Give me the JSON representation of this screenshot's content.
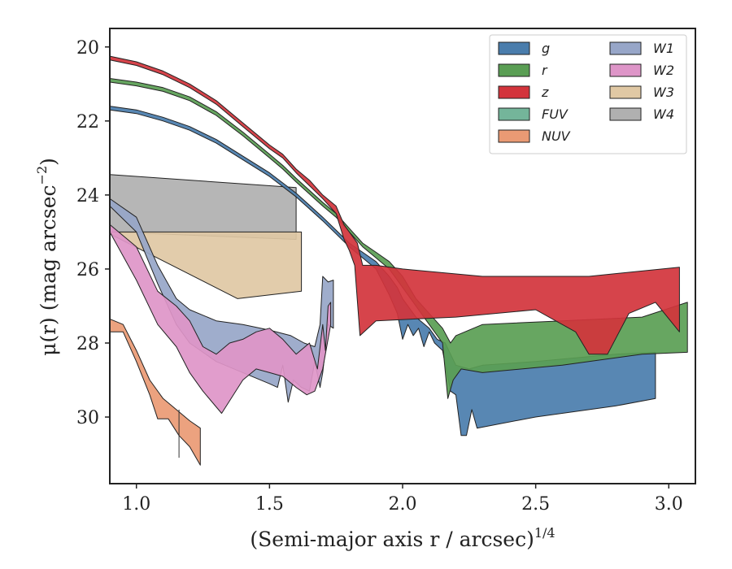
{
  "chart_data": {
    "type": "area",
    "xlabel": "(Semi-major axis r / arcsec)",
    "xlabel_exponent": "1/4",
    "ylabel": "μ(r) (mag arcsec",
    "ylabel_exponent": "−2",
    "ylabel_close": ")",
    "xlim": [
      0.9,
      3.1
    ],
    "ylim": [
      31.8,
      19.5
    ],
    "y_inverted": true,
    "x_ticks": [
      1.0,
      1.5,
      2.0,
      2.5,
      3.0
    ],
    "x_tick_labels": [
      "1.0",
      "1.5",
      "2.0",
      "2.5",
      "3.0"
    ],
    "y_ticks": [
      20,
      22,
      24,
      26,
      28,
      30
    ],
    "y_tick_labels": [
      "20",
      "22",
      "24",
      "26",
      "28",
      "30"
    ],
    "grid": false,
    "legend_position": "top-right",
    "legend_columns": 2,
    "series": [
      {
        "name": "W4",
        "color": "#b0b0b0",
        "upper": [
          [
            0.9,
            23.45
          ],
          [
            1.6,
            23.8
          ]
        ],
        "lower": [
          [
            0.9,
            25.0
          ],
          [
            1.6,
            25.2
          ]
        ]
      },
      {
        "name": "W3",
        "color": "#e0c8a4",
        "upper": [
          [
            0.9,
            25.0
          ],
          [
            1.62,
            25.0
          ]
        ],
        "lower": [
          [
            0.9,
            25.05
          ],
          [
            1.38,
            26.8
          ],
          [
            1.62,
            26.6
          ]
        ]
      },
      {
        "name": "W1",
        "color": "#97a6c8",
        "upper": [
          [
            0.9,
            24.1
          ],
          [
            1.0,
            24.6
          ],
          [
            1.08,
            25.9
          ],
          [
            1.15,
            26.8
          ],
          [
            1.2,
            27.1
          ],
          [
            1.3,
            27.4
          ],
          [
            1.4,
            27.5
          ],
          [
            1.5,
            27.65
          ],
          [
            1.58,
            27.8
          ],
          [
            1.63,
            28.0
          ],
          [
            1.67,
            28.1
          ],
          [
            1.69,
            27.5
          ],
          [
            1.7,
            26.2
          ],
          [
            1.72,
            26.35
          ],
          [
            1.74,
            26.3
          ]
        ],
        "lower": [
          [
            0.9,
            24.3
          ],
          [
            1.0,
            25.0
          ],
          [
            1.08,
            26.4
          ],
          [
            1.15,
            27.5
          ],
          [
            1.2,
            28.0
          ],
          [
            1.3,
            28.5
          ],
          [
            1.4,
            28.8
          ],
          [
            1.5,
            29.1
          ],
          [
            1.53,
            29.2
          ],
          [
            1.55,
            28.6
          ],
          [
            1.57,
            29.6
          ],
          [
            1.59,
            29.0
          ],
          [
            1.62,
            29.2
          ],
          [
            1.65,
            29.3
          ],
          [
            1.67,
            28.5
          ],
          [
            1.69,
            29.2
          ],
          [
            1.7,
            28.8
          ],
          [
            1.72,
            27.5
          ],
          [
            1.74,
            27.6
          ]
        ]
      },
      {
        "name": "W2",
        "color": "#de95c8",
        "upper": [
          [
            0.9,
            24.8
          ],
          [
            1.0,
            25.4
          ],
          [
            1.08,
            26.6
          ],
          [
            1.15,
            27.0
          ],
          [
            1.2,
            27.4
          ],
          [
            1.25,
            28.1
          ],
          [
            1.3,
            28.3
          ],
          [
            1.35,
            28.0
          ],
          [
            1.4,
            27.9
          ],
          [
            1.45,
            27.7
          ],
          [
            1.5,
            27.6
          ],
          [
            1.55,
            27.9
          ],
          [
            1.6,
            28.3
          ],
          [
            1.65,
            28.0
          ],
          [
            1.68,
            28.7
          ],
          [
            1.7,
            27.5
          ],
          [
            1.71,
            28.2
          ],
          [
            1.72,
            27.0
          ],
          [
            1.73,
            26.9
          ]
        ],
        "lower": [
          [
            0.9,
            25.0
          ],
          [
            1.0,
            26.3
          ],
          [
            1.08,
            27.5
          ],
          [
            1.15,
            28.1
          ],
          [
            1.2,
            28.8
          ],
          [
            1.25,
            29.3
          ],
          [
            1.32,
            29.9
          ],
          [
            1.4,
            29.0
          ],
          [
            1.45,
            28.7
          ],
          [
            1.5,
            28.8
          ],
          [
            1.55,
            28.9
          ],
          [
            1.6,
            29.2
          ],
          [
            1.64,
            29.4
          ],
          [
            1.67,
            29.3
          ],
          [
            1.7,
            28.7
          ],
          [
            1.73,
            27.5
          ]
        ]
      },
      {
        "name": "NUV",
        "color": "#ea9a74",
        "upper": [
          [
            0.9,
            27.35
          ],
          [
            0.95,
            27.5
          ],
          [
            1.0,
            28.2
          ],
          [
            1.05,
            29.0
          ],
          [
            1.1,
            29.5
          ],
          [
            1.15,
            29.8
          ],
          [
            1.2,
            30.1
          ],
          [
            1.24,
            30.3
          ]
        ],
        "lower": [
          [
            0.9,
            27.7
          ],
          [
            0.95,
            27.7
          ],
          [
            1.0,
            28.5
          ],
          [
            1.05,
            29.4
          ],
          [
            1.08,
            30.05
          ],
          [
            1.12,
            30.05
          ],
          [
            1.16,
            30.5
          ],
          [
            1.2,
            30.8
          ],
          [
            1.24,
            31.3
          ]
        ]
      },
      {
        "name": "g",
        "color": "#4a7dac",
        "upper": [
          [
            0.9,
            21.6
          ],
          [
            1.0,
            21.7
          ],
          [
            1.1,
            21.9
          ],
          [
            1.2,
            22.15
          ],
          [
            1.3,
            22.5
          ],
          [
            1.4,
            22.95
          ],
          [
            1.5,
            23.4
          ],
          [
            1.6,
            23.95
          ],
          [
            1.7,
            24.6
          ],
          [
            1.75,
            24.95
          ],
          [
            1.8,
            25.3
          ],
          [
            1.85,
            25.55
          ],
          [
            1.9,
            25.8
          ],
          [
            1.95,
            26.2
          ],
          [
            1.98,
            26.5
          ],
          [
            2.0,
            26.8
          ],
          [
            2.05,
            27.3
          ],
          [
            2.1,
            27.6
          ],
          [
            2.13,
            27.9
          ],
          [
            2.16,
            28.0
          ],
          [
            2.18,
            28.3
          ],
          [
            2.2,
            28.6
          ],
          [
            2.25,
            28.7
          ],
          [
            2.3,
            28.6
          ],
          [
            2.5,
            28.5
          ],
          [
            2.8,
            28.3
          ],
          [
            2.95,
            28.25
          ]
        ],
        "lower": [
          [
            0.9,
            21.7
          ],
          [
            1.0,
            21.8
          ],
          [
            1.1,
            22.0
          ],
          [
            1.2,
            22.25
          ],
          [
            1.3,
            22.6
          ],
          [
            1.4,
            23.05
          ],
          [
            1.5,
            23.5
          ],
          [
            1.6,
            24.05
          ],
          [
            1.7,
            24.7
          ],
          [
            1.75,
            25.05
          ],
          [
            1.8,
            25.4
          ],
          [
            1.85,
            25.7
          ],
          [
            1.9,
            26.0
          ],
          [
            1.95,
            26.7
          ],
          [
            1.98,
            27.2
          ],
          [
            2.0,
            27.9
          ],
          [
            2.02,
            27.5
          ],
          [
            2.04,
            27.8
          ],
          [
            2.06,
            27.6
          ],
          [
            2.08,
            28.1
          ],
          [
            2.1,
            27.7
          ],
          [
            2.12,
            28.0
          ],
          [
            2.15,
            28.2
          ],
          [
            2.18,
            29.3
          ],
          [
            2.2,
            29.4
          ],
          [
            2.22,
            30.5
          ],
          [
            2.24,
            30.5
          ],
          [
            2.26,
            29.8
          ],
          [
            2.28,
            30.3
          ],
          [
            2.5,
            30.0
          ],
          [
            2.8,
            29.7
          ],
          [
            2.95,
            29.5
          ]
        ]
      },
      {
        "name": "r",
        "color": "#5a9e54",
        "upper": [
          [
            0.9,
            20.85
          ],
          [
            1.0,
            20.95
          ],
          [
            1.1,
            21.1
          ],
          [
            1.2,
            21.35
          ],
          [
            1.3,
            21.75
          ],
          [
            1.4,
            22.3
          ],
          [
            1.5,
            22.9
          ],
          [
            1.55,
            23.2
          ],
          [
            1.6,
            23.55
          ],
          [
            1.7,
            24.2
          ],
          [
            1.75,
            24.5
          ],
          [
            1.8,
            24.9
          ],
          [
            1.85,
            25.3
          ],
          [
            1.9,
            25.55
          ],
          [
            1.95,
            25.8
          ],
          [
            2.0,
            26.2
          ],
          [
            2.05,
            26.8
          ],
          [
            2.1,
            27.2
          ],
          [
            2.15,
            27.6
          ],
          [
            2.18,
            28.0
          ],
          [
            2.2,
            27.8
          ],
          [
            2.3,
            27.5
          ],
          [
            2.6,
            27.4
          ],
          [
            2.9,
            27.3
          ],
          [
            3.07,
            26.9
          ]
        ],
        "lower": [
          [
            0.9,
            20.95
          ],
          [
            1.0,
            21.05
          ],
          [
            1.1,
            21.2
          ],
          [
            1.2,
            21.45
          ],
          [
            1.3,
            21.85
          ],
          [
            1.4,
            22.4
          ],
          [
            1.5,
            23.0
          ],
          [
            1.55,
            23.3
          ],
          [
            1.6,
            23.65
          ],
          [
            1.7,
            24.3
          ],
          [
            1.75,
            24.6
          ],
          [
            1.8,
            25.0
          ],
          [
            1.85,
            25.4
          ],
          [
            1.9,
            25.7
          ],
          [
            1.95,
            26.0
          ],
          [
            2.0,
            26.5
          ],
          [
            2.05,
            27.0
          ],
          [
            2.1,
            27.5
          ],
          [
            2.15,
            28.0
          ],
          [
            2.17,
            29.5
          ],
          [
            2.19,
            29.0
          ],
          [
            2.22,
            28.7
          ],
          [
            2.3,
            28.8
          ],
          [
            2.6,
            28.6
          ],
          [
            2.9,
            28.3
          ],
          [
            3.07,
            28.25
          ]
        ]
      },
      {
        "name": "z",
        "color": "#d3343c",
        "upper": [
          [
            0.9,
            20.25
          ],
          [
            1.0,
            20.4
          ],
          [
            1.1,
            20.65
          ],
          [
            1.2,
            21.0
          ],
          [
            1.3,
            21.45
          ],
          [
            1.4,
            22.05
          ],
          [
            1.5,
            22.65
          ],
          [
            1.55,
            22.9
          ],
          [
            1.6,
            23.3
          ],
          [
            1.65,
            23.6
          ],
          [
            1.7,
            24.0
          ],
          [
            1.75,
            24.3
          ],
          [
            1.78,
            24.8
          ],
          [
            1.8,
            25.0
          ],
          [
            1.83,
            25.3
          ],
          [
            1.85,
            25.9
          ],
          [
            1.9,
            25.9
          ],
          [
            2.0,
            26.0
          ],
          [
            2.3,
            26.2
          ],
          [
            2.7,
            26.2
          ],
          [
            3.04,
            25.95
          ]
        ],
        "lower": [
          [
            0.9,
            20.35
          ],
          [
            1.0,
            20.5
          ],
          [
            1.1,
            20.75
          ],
          [
            1.2,
            21.1
          ],
          [
            1.3,
            21.55
          ],
          [
            1.4,
            22.15
          ],
          [
            1.5,
            22.75
          ],
          [
            1.55,
            23.0
          ],
          [
            1.6,
            23.4
          ],
          [
            1.65,
            23.75
          ],
          [
            1.7,
            24.1
          ],
          [
            1.75,
            24.5
          ],
          [
            1.78,
            25.2
          ],
          [
            1.8,
            25.5
          ],
          [
            1.82,
            25.9
          ],
          [
            1.84,
            27.8
          ],
          [
            1.9,
            27.4
          ],
          [
            2.2,
            27.3
          ],
          [
            2.5,
            27.1
          ],
          [
            2.65,
            27.7
          ],
          [
            2.7,
            28.3
          ],
          [
            2.77,
            28.3
          ],
          [
            2.85,
            27.2
          ],
          [
            2.95,
            26.9
          ],
          [
            3.04,
            27.7
          ]
        ]
      }
    ],
    "legend": [
      {
        "label": "g",
        "color": "#4a7dac"
      },
      {
        "label": "r",
        "color": "#5a9e54"
      },
      {
        "label": "z",
        "color": "#d3343c"
      },
      {
        "label": "FUV",
        "color": "#74b59a"
      },
      {
        "label": "NUV",
        "color": "#ea9a74"
      },
      {
        "label": "W1",
        "color": "#97a6c8"
      },
      {
        "label": "W2",
        "color": "#de95c8"
      },
      {
        "label": "W3",
        "color": "#e0c8a4"
      },
      {
        "label": "W4",
        "color": "#b0b0b0"
      }
    ],
    "annotations": [
      {
        "type": "vline",
        "x": 1.16,
        "y_from": 29.8,
        "y_to": 31.1
      }
    ]
  }
}
